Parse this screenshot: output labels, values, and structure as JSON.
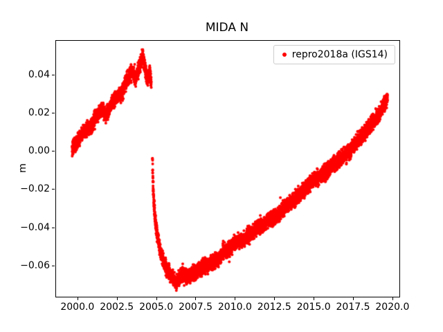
{
  "chart_data": {
    "type": "scatter",
    "title": "MIDA N",
    "xlabel": "",
    "ylabel": "m",
    "legend": {
      "label": "repro2018a (IGS14)",
      "marker_color": "#ff0000",
      "location": "upper right"
    },
    "marker_color": "#ff0000",
    "marker_radius": 2,
    "grid": false,
    "xlim": [
      1998.6,
      2020.4
    ],
    "ylim": [
      -0.076,
      0.058
    ],
    "xticks": [
      2000.0,
      2002.5,
      2005.0,
      2007.5,
      2010.0,
      2012.5,
      2015.0,
      2017.5,
      2020.0
    ],
    "xtick_labels": [
      "2000.0",
      "2002.5",
      "2005.0",
      "2007.5",
      "2010.0",
      "2012.5",
      "2015.0",
      "2017.5",
      "2020.0"
    ],
    "yticks": [
      -0.06,
      -0.04,
      -0.02,
      0.0,
      0.02,
      0.04
    ],
    "ytick_labels": [
      "−0.06",
      "−0.04",
      "−0.02",
      "0.00",
      "0.02",
      "0.04"
    ],
    "sampling_per_year": 365,
    "noise_std": 0.0018,
    "series": [
      {
        "name": "repro2018a (IGS14)",
        "segments": [
          {
            "anchors": [
              [
                1999.62,
                0.001
              ],
              [
                2000.0,
                0.006
              ],
              [
                2000.3,
                0.01
              ],
              [
                2000.6,
                0.012
              ],
              [
                2000.9,
                0.014
              ],
              [
                2001.1,
                0.018
              ],
              [
                2001.5,
                0.022
              ],
              [
                2001.8,
                0.019
              ],
              [
                2002.1,
                0.025
              ],
              [
                2002.4,
                0.028
              ],
              [
                2002.8,
                0.031
              ],
              [
                2003.1,
                0.038
              ],
              [
                2003.4,
                0.042
              ],
              [
                2003.65,
                0.038
              ],
              [
                2003.95,
                0.046
              ],
              [
                2004.1,
                0.051
              ],
              [
                2004.25,
                0.044
              ],
              [
                2004.4,
                0.037
              ],
              [
                2004.55,
                0.042
              ],
              [
                2004.65,
                0.035
              ]
            ]
          },
          {
            "anchors": [
              [
                2004.72,
                -0.004
              ],
              [
                2004.74,
                -0.012
              ],
              [
                2004.77,
                -0.02
              ],
              [
                2004.82,
                -0.028
              ],
              [
                2004.92,
                -0.038
              ],
              [
                2005.05,
                -0.045
              ],
              [
                2005.25,
                -0.053
              ],
              [
                2005.5,
                -0.059
              ],
              [
                2005.8,
                -0.064
              ],
              [
                2006.1,
                -0.067
              ],
              [
                2006.25,
                -0.069
              ],
              [
                2006.45,
                -0.066
              ],
              [
                2006.7,
                -0.064
              ],
              [
                2006.95,
                -0.066
              ],
              [
                2007.2,
                -0.064
              ],
              [
                2007.5,
                -0.063
              ],
              [
                2007.8,
                -0.061
              ],
              [
                2008.1,
                -0.06
              ],
              [
                2008.5,
                -0.058
              ],
              [
                2008.9,
                -0.056
              ],
              [
                2009.3,
                -0.052
              ],
              [
                2009.7,
                -0.05
              ],
              [
                2010.1,
                -0.047
              ],
              [
                2010.5,
                -0.046
              ],
              [
                2010.9,
                -0.043
              ],
              [
                2011.3,
                -0.04
              ],
              [
                2011.7,
                -0.039
              ],
              [
                2012.1,
                -0.036
              ],
              [
                2012.5,
                -0.034
              ],
              [
                2012.9,
                -0.031
              ],
              [
                2013.3,
                -0.028
              ],
              [
                2013.7,
                -0.025
              ],
              [
                2014.1,
                -0.022
              ],
              [
                2014.5,
                -0.019
              ],
              [
                2014.9,
                -0.015
              ],
              [
                2015.3,
                -0.013
              ],
              [
                2015.7,
                -0.011
              ],
              [
                2016.1,
                -0.007
              ],
              [
                2016.5,
                -0.005
              ],
              [
                2016.9,
                -0.002
              ],
              [
                2017.3,
                0.001
              ],
              [
                2017.7,
                0.005
              ],
              [
                2018.1,
                0.009
              ],
              [
                2018.5,
                0.013
              ],
              [
                2018.9,
                0.017
              ],
              [
                2019.2,
                0.021
              ],
              [
                2019.45,
                0.025
              ],
              [
                2019.65,
                0.028
              ]
            ]
          }
        ]
      }
    ]
  }
}
